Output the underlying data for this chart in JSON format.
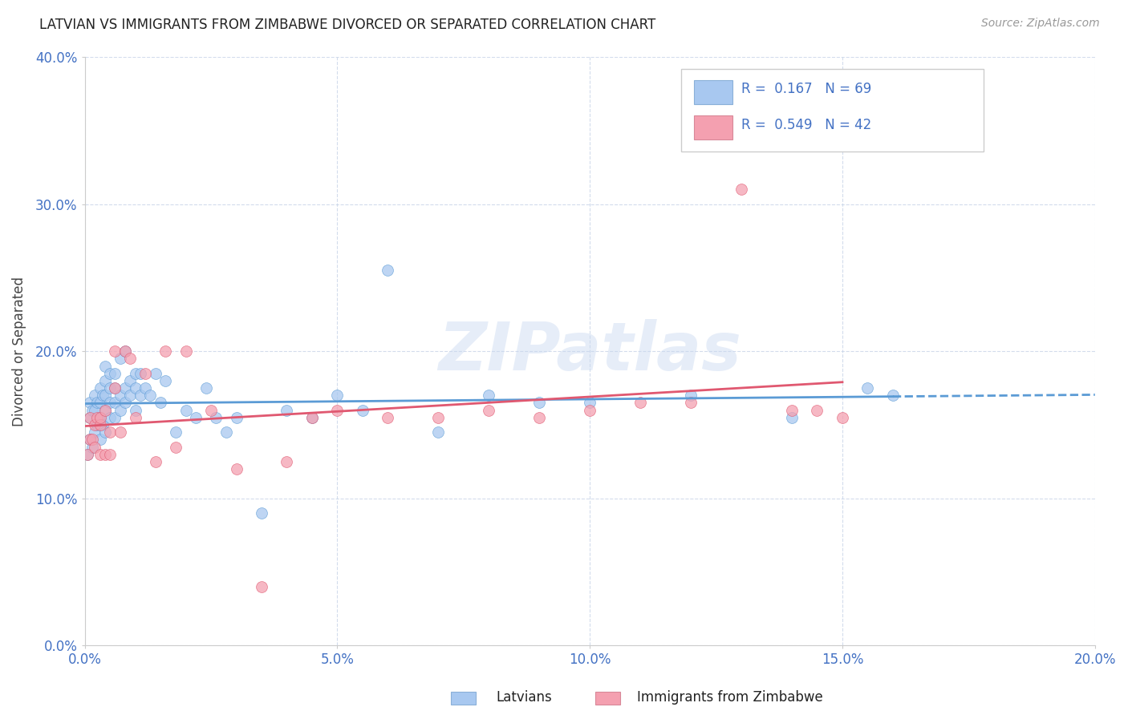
{
  "title": "LATVIAN VS IMMIGRANTS FROM ZIMBABWE DIVORCED OR SEPARATED CORRELATION CHART",
  "source": "Source: ZipAtlas.com",
  "ylabel_label": "Divorced or Separated",
  "legend_label_1": "Latvians",
  "legend_label_2": "Immigrants from Zimbabwe",
  "R1": 0.167,
  "N1": 69,
  "R2": 0.549,
  "N2": 42,
  "color1": "#a8c8f0",
  "color2": "#f4a0b0",
  "trendline1_color": "#5b9bd5",
  "trendline2_color": "#e05870",
  "xlim": [
    0.0,
    0.2
  ],
  "ylim": [
    0.0,
    0.4
  ],
  "xticks": [
    0.0,
    0.05,
    0.1,
    0.15,
    0.2
  ],
  "yticks": [
    0.0,
    0.1,
    0.2,
    0.3,
    0.4
  ],
  "watermark": "ZIPatlas",
  "background_color": "#ffffff",
  "latvians_x": [
    0.0005,
    0.001,
    0.001,
    0.001,
    0.0015,
    0.0015,
    0.002,
    0.002,
    0.002,
    0.0025,
    0.0025,
    0.003,
    0.003,
    0.003,
    0.003,
    0.0035,
    0.0035,
    0.004,
    0.004,
    0.004,
    0.004,
    0.004,
    0.005,
    0.005,
    0.005,
    0.005,
    0.006,
    0.006,
    0.006,
    0.006,
    0.007,
    0.007,
    0.007,
    0.008,
    0.008,
    0.008,
    0.009,
    0.009,
    0.01,
    0.01,
    0.01,
    0.011,
    0.011,
    0.012,
    0.013,
    0.014,
    0.015,
    0.016,
    0.018,
    0.02,
    0.022,
    0.024,
    0.026,
    0.028,
    0.03,
    0.035,
    0.04,
    0.045,
    0.05,
    0.055,
    0.06,
    0.07,
    0.08,
    0.09,
    0.1,
    0.12,
    0.14,
    0.155,
    0.16
  ],
  "latvians_y": [
    0.13,
    0.14,
    0.155,
    0.165,
    0.135,
    0.16,
    0.145,
    0.16,
    0.17,
    0.15,
    0.165,
    0.14,
    0.155,
    0.165,
    0.175,
    0.15,
    0.17,
    0.145,
    0.16,
    0.17,
    0.18,
    0.19,
    0.155,
    0.165,
    0.175,
    0.185,
    0.155,
    0.165,
    0.175,
    0.185,
    0.16,
    0.17,
    0.195,
    0.165,
    0.175,
    0.2,
    0.17,
    0.18,
    0.16,
    0.175,
    0.185,
    0.17,
    0.185,
    0.175,
    0.17,
    0.185,
    0.165,
    0.18,
    0.145,
    0.16,
    0.155,
    0.175,
    0.155,
    0.145,
    0.155,
    0.09,
    0.16,
    0.155,
    0.17,
    0.16,
    0.255,
    0.145,
    0.17,
    0.165,
    0.165,
    0.17,
    0.155,
    0.175,
    0.17
  ],
  "zimbabwe_x": [
    0.0005,
    0.001,
    0.001,
    0.0015,
    0.002,
    0.002,
    0.0025,
    0.003,
    0.003,
    0.003,
    0.004,
    0.004,
    0.005,
    0.005,
    0.006,
    0.006,
    0.007,
    0.008,
    0.009,
    0.01,
    0.012,
    0.014,
    0.016,
    0.018,
    0.02,
    0.025,
    0.03,
    0.035,
    0.04,
    0.045,
    0.05,
    0.06,
    0.07,
    0.08,
    0.09,
    0.1,
    0.11,
    0.12,
    0.13,
    0.14,
    0.145,
    0.15
  ],
  "zimbabwe_y": [
    0.13,
    0.14,
    0.155,
    0.14,
    0.135,
    0.15,
    0.155,
    0.13,
    0.15,
    0.155,
    0.13,
    0.16,
    0.13,
    0.145,
    0.2,
    0.175,
    0.145,
    0.2,
    0.195,
    0.155,
    0.185,
    0.125,
    0.2,
    0.135,
    0.2,
    0.16,
    0.12,
    0.04,
    0.125,
    0.155,
    0.16,
    0.155,
    0.155,
    0.16,
    0.155,
    0.16,
    0.165,
    0.165,
    0.31,
    0.16,
    0.16,
    0.155
  ]
}
